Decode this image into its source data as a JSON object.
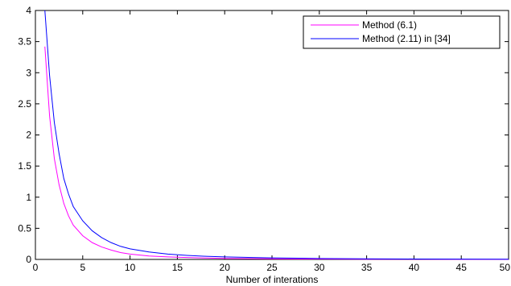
{
  "chart_data": {
    "type": "line",
    "title": "",
    "xlabel": "Number of interations",
    "ylabel": "",
    "xlim": [
      0,
      50
    ],
    "ylim": [
      0,
      4
    ],
    "xticks": [
      0,
      5,
      10,
      15,
      20,
      25,
      30,
      35,
      40,
      45,
      50
    ],
    "yticks": [
      0,
      0.5,
      1,
      1.5,
      2,
      2.5,
      3,
      3.5,
      4
    ],
    "ytick_labels": [
      "0",
      "0.5",
      "1",
      "1.5",
      "2",
      "2.5",
      "3",
      "3.5",
      "4"
    ],
    "grid": false,
    "legend_position": "top-right",
    "series": [
      {
        "name": "Method (6.1)",
        "color": "#ff00ff",
        "x": [
          1,
          1.5,
          2,
          2.5,
          3,
          3.5,
          4,
          5,
          6,
          7,
          8,
          9,
          10,
          12,
          14,
          16,
          18,
          20,
          25,
          30,
          35,
          40,
          45,
          50
        ],
        "y": [
          3.42,
          2.3,
          1.62,
          1.2,
          0.9,
          0.7,
          0.55,
          0.38,
          0.27,
          0.2,
          0.15,
          0.11,
          0.085,
          0.055,
          0.04,
          0.03,
          0.022,
          0.017,
          0.01,
          0.006,
          0.004,
          0.003,
          0.002,
          0.001
        ]
      },
      {
        "name": "Method (2.11) in [34]",
        "color": "#0000ff",
        "x": [
          1,
          1.5,
          2,
          2.5,
          3,
          3.5,
          4,
          5,
          6,
          7,
          8,
          9,
          10,
          12,
          14,
          16,
          18,
          20,
          25,
          30,
          35,
          40,
          45,
          50
        ],
        "y": [
          4.0,
          2.95,
          2.2,
          1.7,
          1.3,
          1.05,
          0.85,
          0.62,
          0.46,
          0.35,
          0.27,
          0.21,
          0.17,
          0.12,
          0.085,
          0.065,
          0.05,
          0.04,
          0.025,
          0.015,
          0.01,
          0.007,
          0.005,
          0.004
        ]
      }
    ]
  }
}
